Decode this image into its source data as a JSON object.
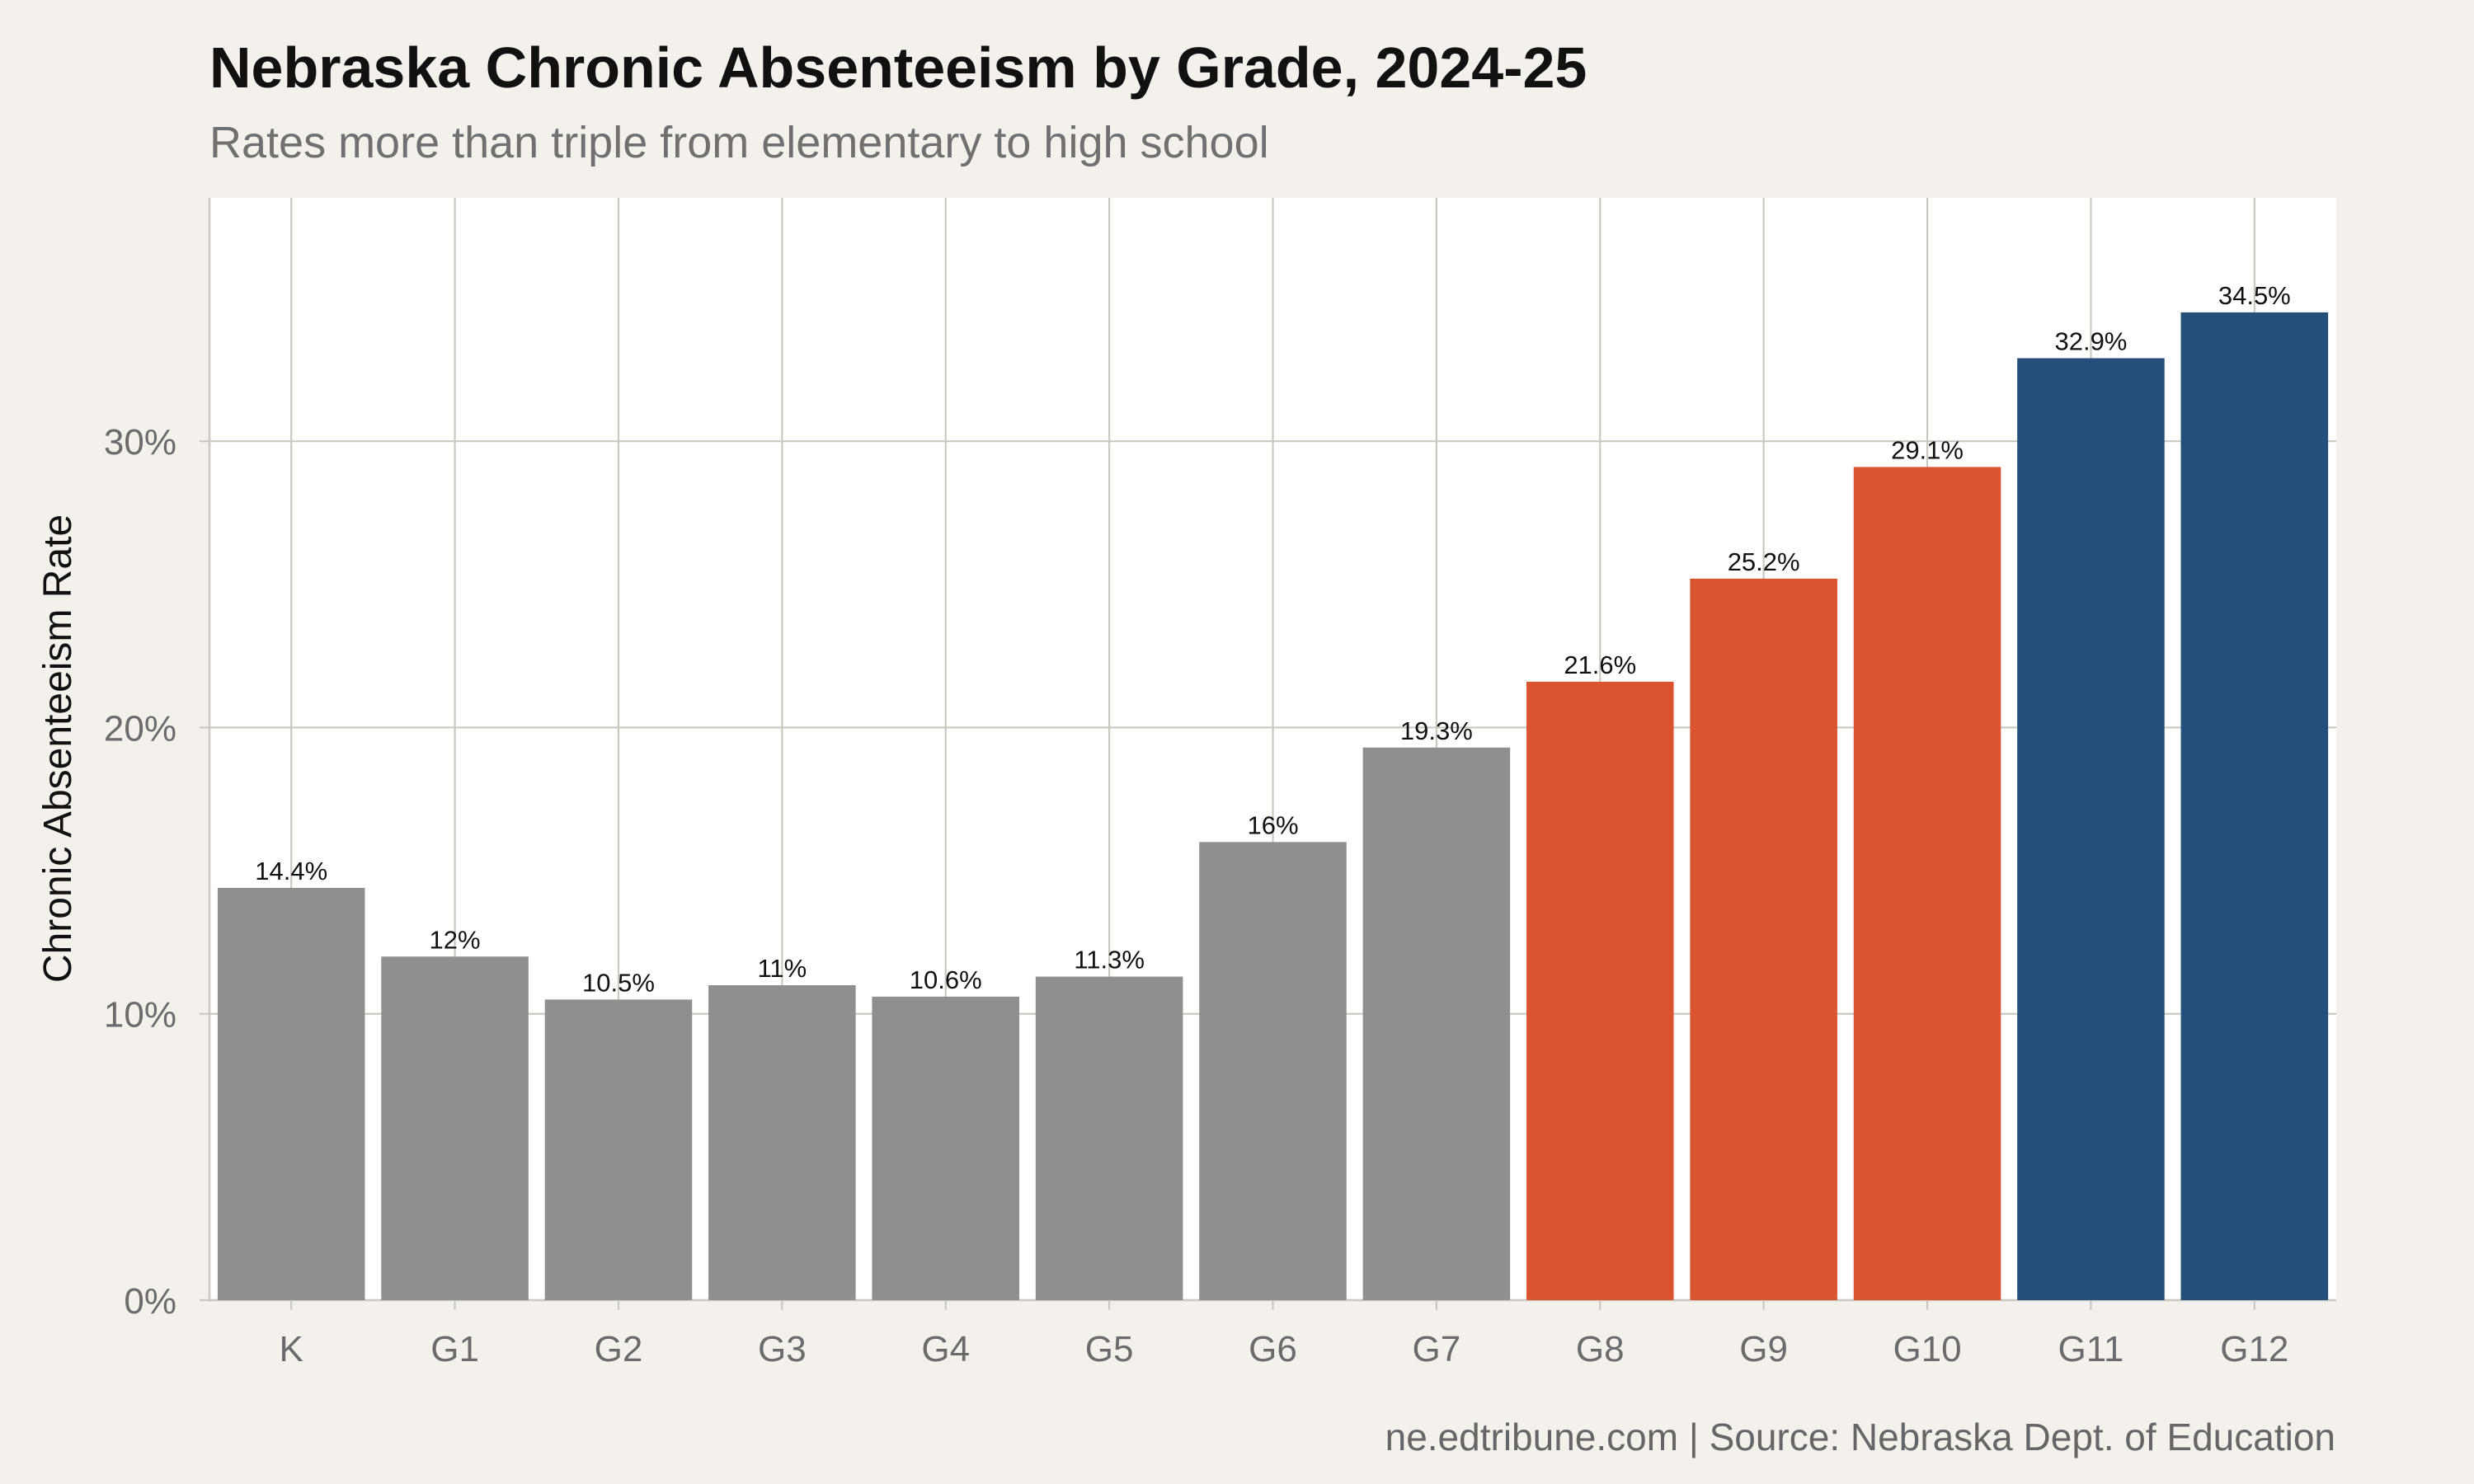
{
  "chart_data": {
    "type": "bar",
    "title": "Nebraska Chronic Absenteeism by Grade, 2024-25",
    "subtitle": "Rates more than triple from elementary to high school",
    "xlabel": "",
    "ylabel": "Chronic Absenteeism Rate",
    "categories": [
      "K",
      "G1",
      "G2",
      "G3",
      "G4",
      "G5",
      "G6",
      "G7",
      "G8",
      "G9",
      "G10",
      "G11",
      "G12"
    ],
    "values": [
      14.4,
      12,
      10.5,
      11,
      10.6,
      11.3,
      16,
      19.3,
      21.6,
      25.2,
      29.1,
      32.9,
      34.5
    ],
    "data_labels": [
      "14.4%",
      "12%",
      "10.5%",
      "11%",
      "10.6%",
      "11.3%",
      "16%",
      "19.3%",
      "21.6%",
      "25.2%",
      "29.1%",
      "32.9%",
      "34.5%"
    ],
    "bar_colors": [
      "#8f8f8f",
      "#8f8f8f",
      "#8f8f8f",
      "#8f8f8f",
      "#8f8f8f",
      "#8f8f8f",
      "#8f8f8f",
      "#8f8f8f",
      "#d9542f",
      "#d9542f",
      "#d9542f",
      "#234f7a",
      "#234f7a"
    ],
    "ylim": [
      0,
      38.5
    ],
    "yticks": [
      0,
      10,
      20,
      30
    ],
    "ytick_labels": [
      "0%",
      "10%",
      "20%",
      "30%"
    ],
    "grid": true,
    "legend": "none",
    "caption": "ne.edtribune.com | Source: Nebraska Dept. of Education"
  },
  "colors": {
    "background": "#f4f1ec",
    "panel": "#ffffff",
    "grid": "#cbc8c2",
    "axis_text": "#6b6b6b"
  }
}
